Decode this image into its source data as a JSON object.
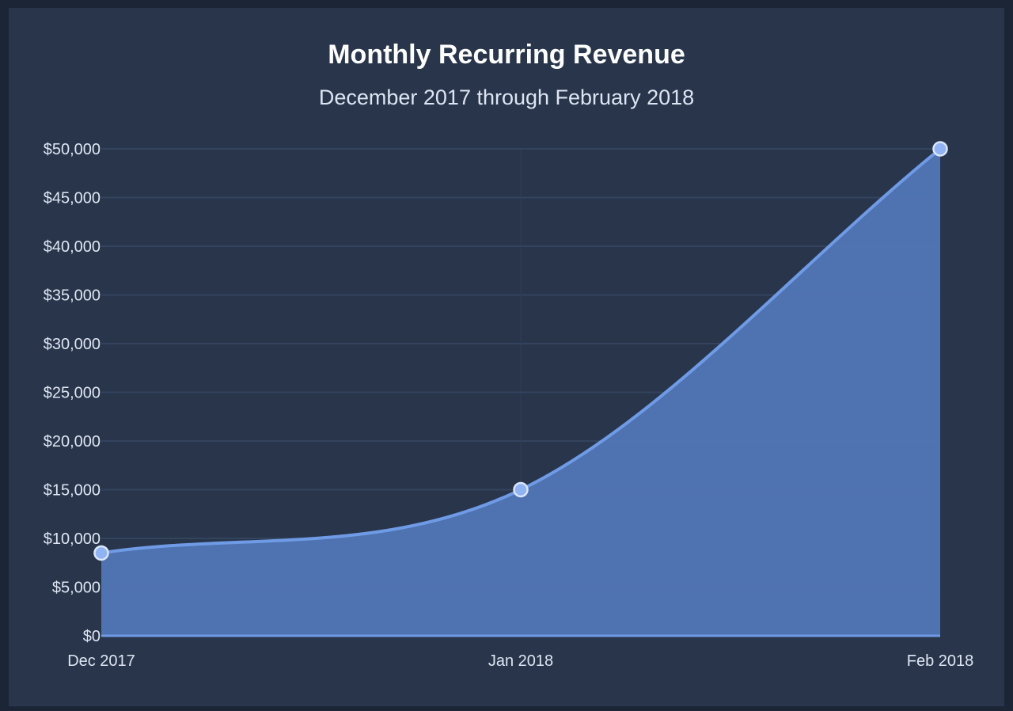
{
  "chart_data": {
    "type": "area",
    "title": "Monthly Recurring Revenue",
    "subtitle": "December 2017 through February 2018",
    "categories": [
      "Dec 2017",
      "Jan 2018",
      "Feb 2018"
    ],
    "series": [
      {
        "name": "Monthly Recurring Revenue",
        "values": [
          8500,
          15000,
          50000
        ]
      }
    ],
    "ylim": [
      0,
      50000
    ],
    "yticks": [
      0,
      5000,
      10000,
      15000,
      20000,
      25000,
      30000,
      35000,
      40000,
      45000,
      50000
    ],
    "ytick_labels": [
      "$0",
      "$5,000",
      "$10,000",
      "$15,000",
      "$20,000",
      "$25,000",
      "$30,000",
      "$35,000",
      "$40,000",
      "$45,000",
      "$50,000"
    ],
    "xlabel": "",
    "ylabel": "",
    "grid": true,
    "colors": {
      "line": "#6f9be6",
      "fill": "#5377b8",
      "point": "#8fb3f3",
      "grid": "#34445e"
    }
  }
}
